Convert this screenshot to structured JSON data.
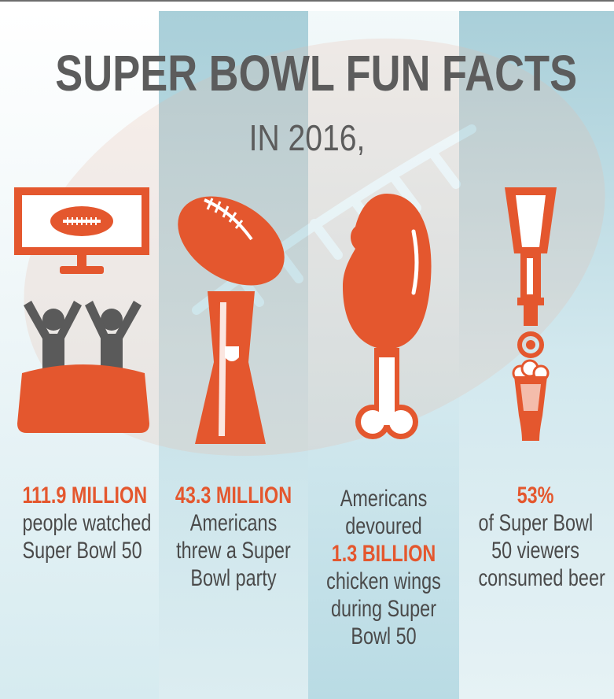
{
  "header": {
    "title": "SUPER BOWL FUN FACTS",
    "subtitle": "IN 2016,"
  },
  "colors": {
    "accent": "#e4572e",
    "text": "#4a4a4a",
    "title": "#5c5c5c",
    "stripe_dark": "#a9cfd9",
    "stripe_light": "#eef6f8"
  },
  "facts": [
    {
      "icon": "tv-fans-couch-icon",
      "lines": [
        "111.9 MILLION",
        "people watched",
        "Super Bowl 50"
      ],
      "highlight": [
        0
      ]
    },
    {
      "icon": "trophy-football-icon",
      "lines": [
        "43.3 MILLION",
        "Americans",
        "threw a Super",
        "Bowl party"
      ],
      "highlight": [
        0
      ]
    },
    {
      "icon": "chicken-wing-icon",
      "lines": [
        "Americans",
        "devoured",
        "1.3 BILLION",
        "chicken wings",
        "during Super",
        "Bowl 50"
      ],
      "highlight": [
        2
      ]
    },
    {
      "icon": "beer-tap-glass-icon",
      "lines": [
        "53%",
        "of Super Bowl",
        "50 viewers",
        "consumed beer"
      ],
      "highlight": [
        0
      ]
    }
  ]
}
